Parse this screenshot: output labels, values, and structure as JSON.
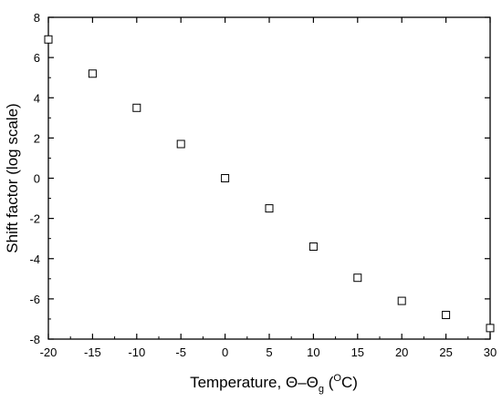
{
  "chart_data": {
    "type": "scatter",
    "title": "",
    "xlabel": {
      "prefix": "Temperature, ",
      "theta": "Θ",
      "dash": "–",
      "theta_g": "Θ",
      "subscript": "g",
      "open": " (",
      "degree": "O",
      "unit": "C)"
    },
    "ylabel": "Shift factor (log scale)",
    "xlim": [
      -20,
      30
    ],
    "ylim": [
      -8,
      8
    ],
    "xticks": [
      -20,
      -15,
      -10,
      -5,
      0,
      5,
      10,
      15,
      20,
      25,
      30
    ],
    "yticks": [
      -8,
      -6,
      -4,
      -2,
      0,
      2,
      4,
      6,
      8
    ],
    "xtick_labels": [
      "-20",
      "-15",
      "-10",
      "-5",
      "0",
      "5",
      "10",
      "15",
      "20",
      "25",
      "30"
    ],
    "ytick_labels": [
      "-8",
      "-6",
      "-4",
      "-2",
      "0",
      "2",
      "4",
      "6",
      "8"
    ],
    "grid": false,
    "legend": "none",
    "marker": "open-square",
    "colors": {
      "marker": "#000000",
      "axis": "#000000"
    },
    "points": [
      {
        "x": -20,
        "y": 6.9
      },
      {
        "x": -15,
        "y": 5.2
      },
      {
        "x": -10,
        "y": 3.5
      },
      {
        "x": -5,
        "y": 1.7
      },
      {
        "x": 0,
        "y": 0.0
      },
      {
        "x": 5,
        "y": -1.5
      },
      {
        "x": 10,
        "y": -3.4
      },
      {
        "x": 15,
        "y": -4.95
      },
      {
        "x": 20,
        "y": -6.1
      },
      {
        "x": 25,
        "y": -6.8
      },
      {
        "x": 30,
        "y": -7.45
      }
    ]
  }
}
